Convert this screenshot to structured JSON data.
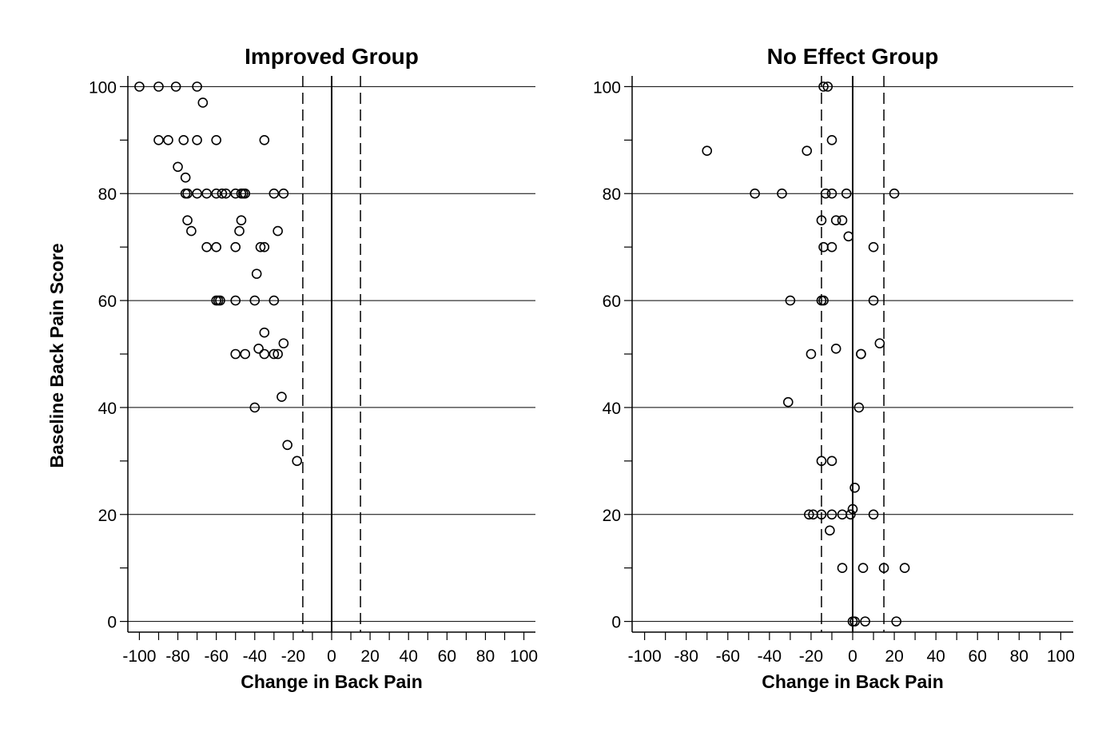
{
  "figure": {
    "ylabel": "Baseline Back Pain Score"
  },
  "chart_data": [
    {
      "type": "scatter",
      "title": "Improved Group",
      "xlabel": "Change in Back Pain",
      "ylabel": "Baseline Back Pain Score",
      "xlim": [
        -106,
        106
      ],
      "ylim": [
        -2,
        102
      ],
      "xticks": [
        -100,
        -80,
        -60,
        -40,
        -20,
        0,
        20,
        40,
        60,
        80,
        100
      ],
      "xtick_labels": [
        "-100",
        "-80",
        "-60",
        "-40",
        "-20",
        "0",
        "20",
        "40",
        "60",
        "80",
        "100"
      ],
      "yticks": [
        0,
        20,
        40,
        60,
        80,
        100
      ],
      "ytick_labels": [
        "0",
        "20",
        "40",
        "60",
        "80",
        "100"
      ],
      "grid": "horizontal",
      "reference_lines": {
        "solid_x": [
          0
        ],
        "dashed_x": [
          -15,
          15
        ]
      },
      "points": [
        [
          -100,
          100
        ],
        [
          -90,
          100
        ],
        [
          -81,
          100
        ],
        [
          -70,
          100
        ],
        [
          -67,
          97
        ],
        [
          -90,
          90
        ],
        [
          -85,
          90
        ],
        [
          -77,
          90
        ],
        [
          -70,
          90
        ],
        [
          -60,
          90
        ],
        [
          -35,
          90
        ],
        [
          -80,
          85
        ],
        [
          -76,
          83
        ],
        [
          -76,
          80
        ],
        [
          -75,
          80
        ],
        [
          -70,
          80
        ],
        [
          -65,
          80
        ],
        [
          -60,
          80
        ],
        [
          -57,
          80
        ],
        [
          -55,
          80
        ],
        [
          -50,
          80
        ],
        [
          -47,
          80
        ],
        [
          -46,
          80
        ],
        [
          -45,
          80
        ],
        [
          -30,
          80
        ],
        [
          -25,
          80
        ],
        [
          -75,
          75
        ],
        [
          -47,
          75
        ],
        [
          -73,
          73
        ],
        [
          -48,
          73
        ],
        [
          -28,
          73
        ],
        [
          -65,
          70
        ],
        [
          -60,
          70
        ],
        [
          -50,
          70
        ],
        [
          -37,
          70
        ],
        [
          -35,
          70
        ],
        [
          -39,
          65
        ],
        [
          -60,
          60
        ],
        [
          -59,
          60
        ],
        [
          -58,
          60
        ],
        [
          -50,
          60
        ],
        [
          -40,
          60
        ],
        [
          -30,
          60
        ],
        [
          -35,
          54
        ],
        [
          -25,
          52
        ],
        [
          -38,
          51
        ],
        [
          -50,
          50
        ],
        [
          -45,
          50
        ],
        [
          -35,
          50
        ],
        [
          -30,
          50
        ],
        [
          -28,
          50
        ],
        [
          -26,
          42
        ],
        [
          -40,
          40
        ],
        [
          -23,
          33
        ],
        [
          -18,
          30
        ]
      ]
    },
    {
      "type": "scatter",
      "title": "No Effect Group",
      "xlabel": "Change in Back Pain",
      "ylabel": "",
      "xlim": [
        -106,
        106
      ],
      "ylim": [
        -2,
        102
      ],
      "xticks": [
        -100,
        -80,
        -60,
        -40,
        -20,
        0,
        20,
        40,
        60,
        80,
        100
      ],
      "xtick_labels": [
        "-100",
        "-80",
        "-60",
        "-40",
        "-20",
        "0",
        "20",
        "40",
        "60",
        "80",
        "100"
      ],
      "yticks": [
        0,
        20,
        40,
        60,
        80,
        100
      ],
      "ytick_labels": [
        "0",
        "20",
        "40",
        "60",
        "80",
        "100"
      ],
      "grid": "horizontal",
      "reference_lines": {
        "solid_x": [
          0
        ],
        "dashed_x": [
          -15,
          15
        ]
      },
      "points": [
        [
          -14,
          100
        ],
        [
          -12,
          100
        ],
        [
          -10,
          90
        ],
        [
          -70,
          88
        ],
        [
          -22,
          88
        ],
        [
          -47,
          80
        ],
        [
          -34,
          80
        ],
        [
          -13,
          80
        ],
        [
          -10,
          80
        ],
        [
          -3,
          80
        ],
        [
          20,
          80
        ],
        [
          -15,
          75
        ],
        [
          -8,
          75
        ],
        [
          -5,
          75
        ],
        [
          -2,
          72
        ],
        [
          -14,
          70
        ],
        [
          -10,
          70
        ],
        [
          10,
          70
        ],
        [
          -30,
          60
        ],
        [
          -15,
          60
        ],
        [
          -14,
          60
        ],
        [
          10,
          60
        ],
        [
          13,
          52
        ],
        [
          -8,
          51
        ],
        [
          -20,
          50
        ],
        [
          4,
          50
        ],
        [
          4,
          50
        ],
        [
          -31,
          41
        ],
        [
          3,
          40
        ],
        [
          -15,
          30
        ],
        [
          -10,
          30
        ],
        [
          1,
          25
        ],
        [
          0,
          21
        ],
        [
          -21,
          20
        ],
        [
          -19,
          20
        ],
        [
          -15,
          20
        ],
        [
          -10,
          20
        ],
        [
          -5,
          20
        ],
        [
          -1,
          20
        ],
        [
          10,
          20
        ],
        [
          -11,
          17
        ],
        [
          -5,
          10
        ],
        [
          5,
          10
        ],
        [
          15,
          10
        ],
        [
          25,
          10
        ],
        [
          0,
          0
        ],
        [
          1,
          0
        ],
        [
          6,
          0
        ],
        [
          21,
          0
        ]
      ]
    }
  ]
}
